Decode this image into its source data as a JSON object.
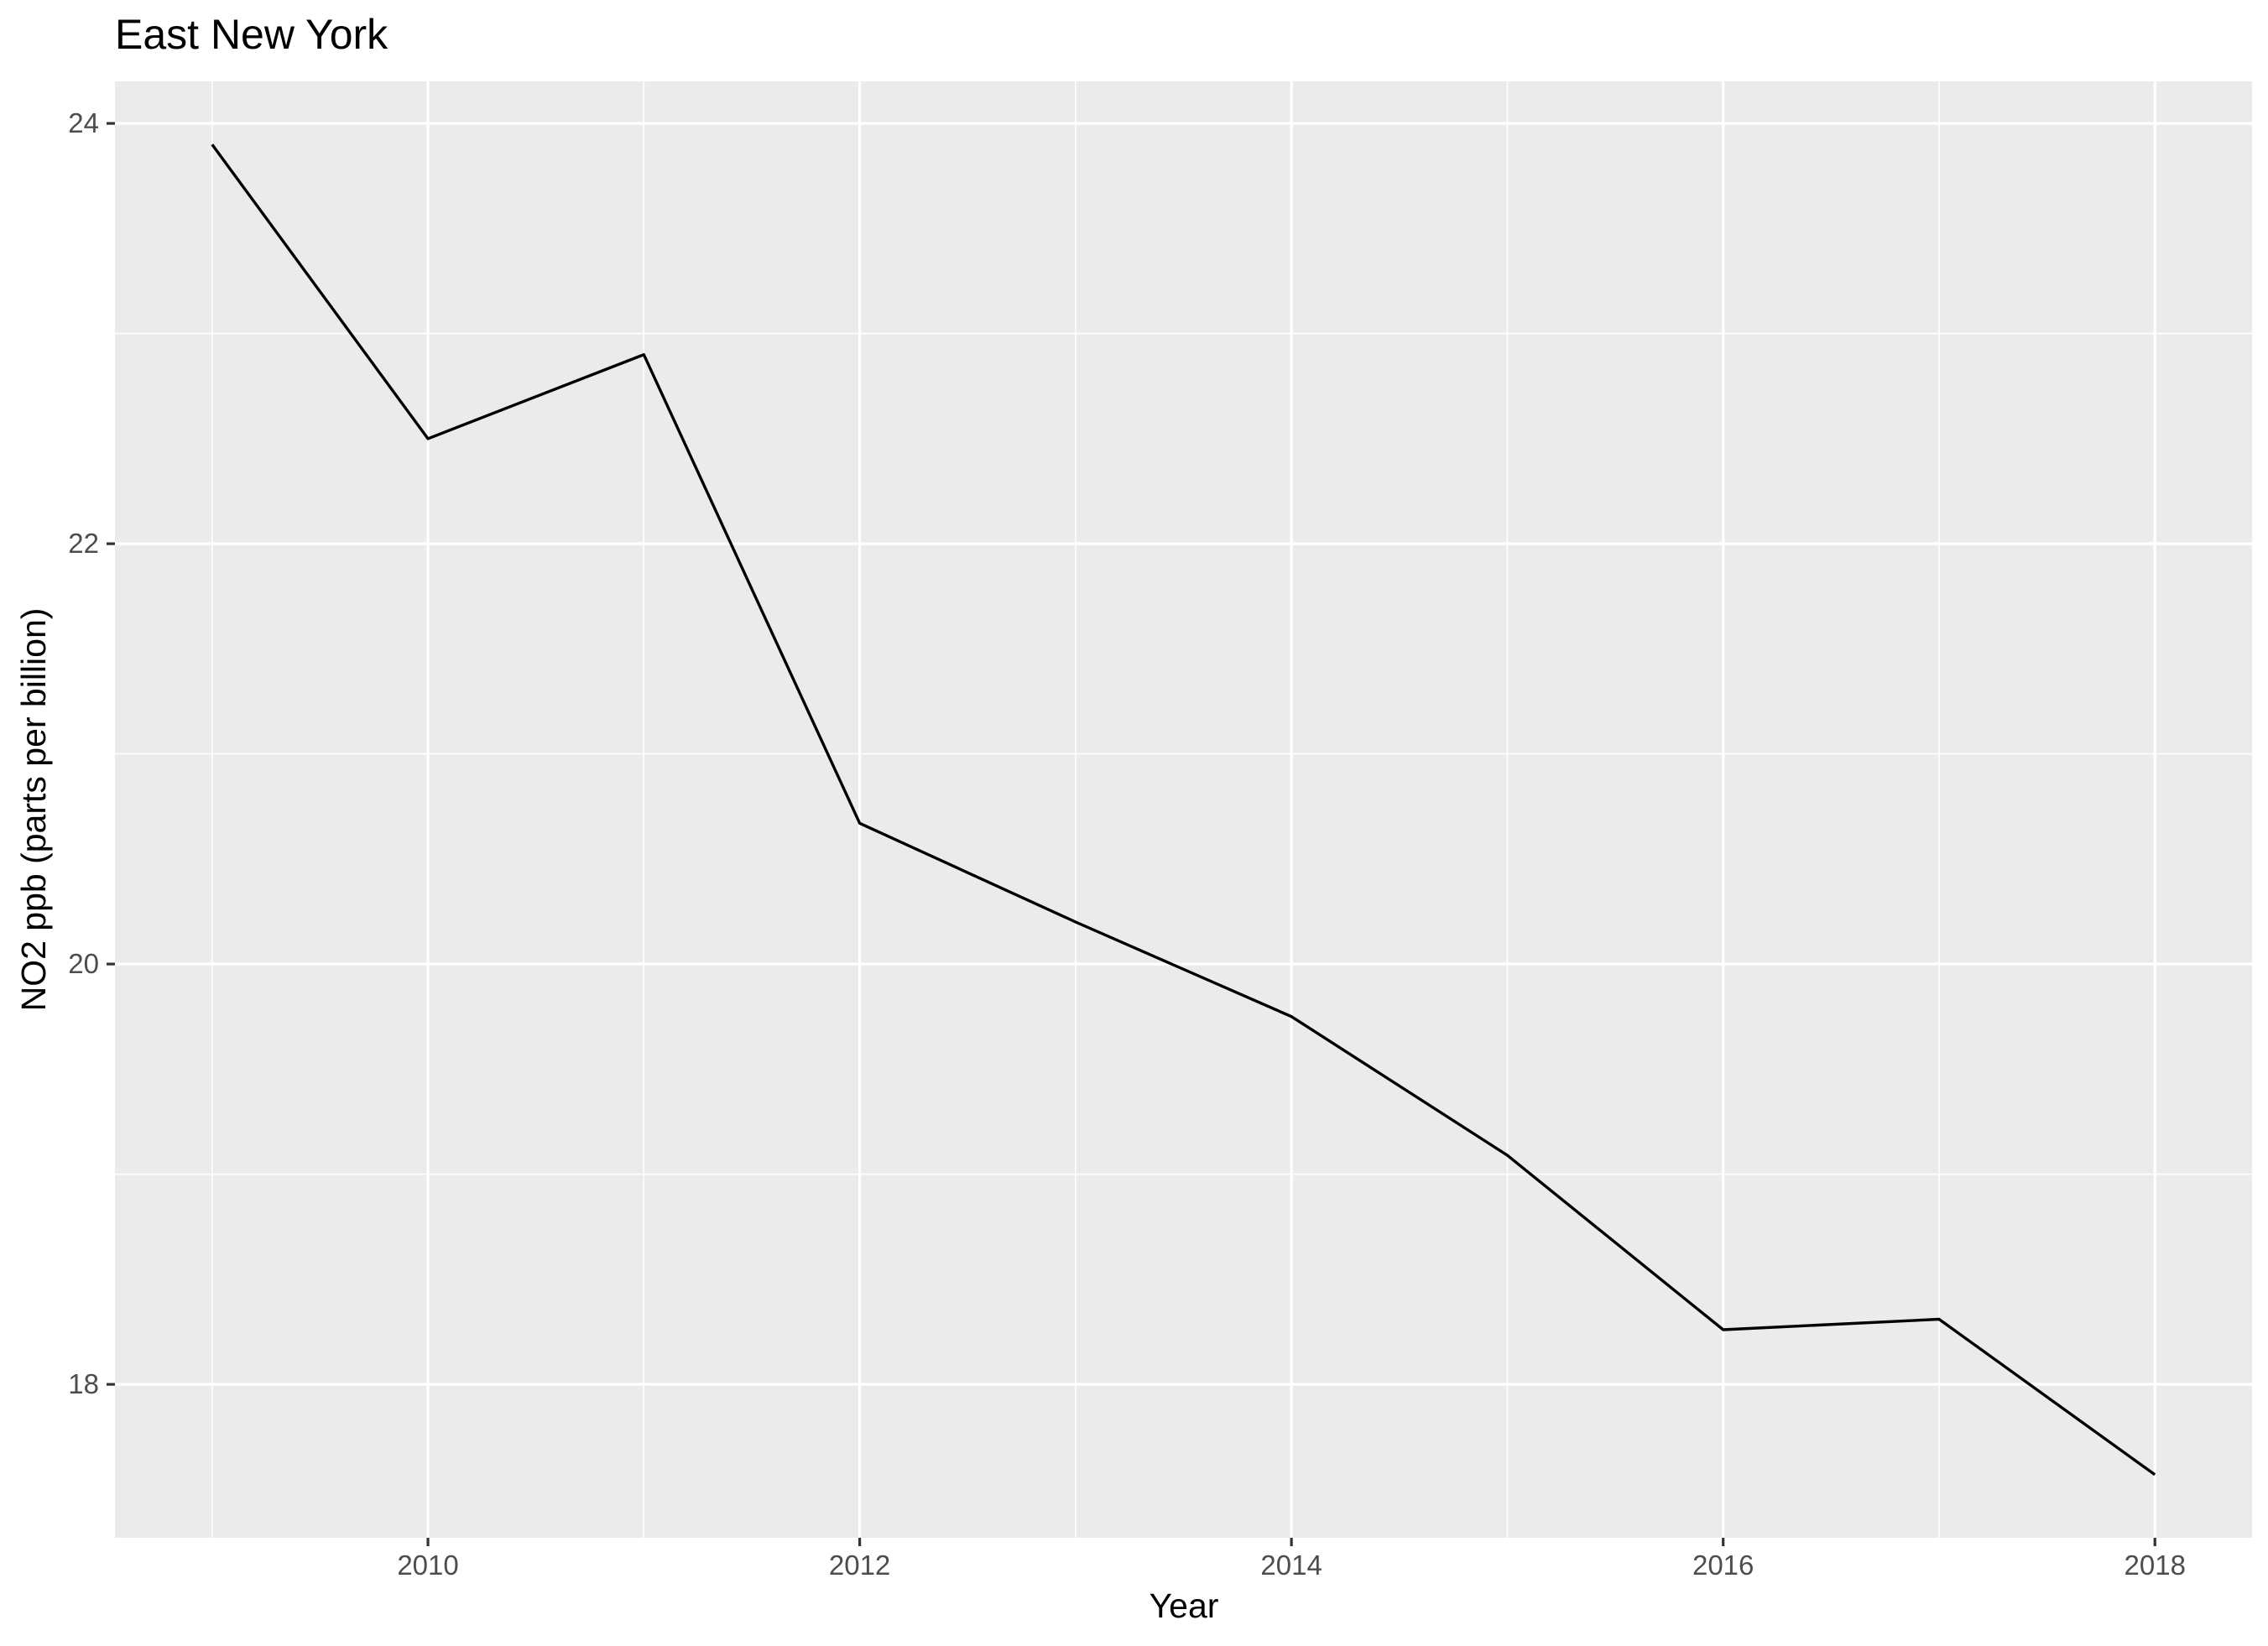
{
  "chart_data": {
    "type": "line",
    "title": "East New York",
    "xlabel": "Year",
    "ylabel": "NO2 ppb (parts per billion)",
    "x": [
      2009,
      2010,
      2011,
      2012,
      2013,
      2014,
      2015,
      2016,
      2017,
      2018
    ],
    "series": [
      {
        "values": [
          23.9,
          22.5,
          22.9,
          20.67,
          20.2,
          19.75,
          19.09,
          18.26,
          18.31,
          17.57
        ]
      }
    ],
    "xlim": [
      2008.55,
      2018.45
    ],
    "ylim": [
      17.27,
      24.2
    ],
    "x_major_ticks": [
      2010,
      2012,
      2014,
      2016,
      2018
    ],
    "x_minor_ticks": [
      2009,
      2011,
      2013,
      2015,
      2017
    ],
    "y_major_ticks": [
      18,
      20,
      22,
      24
    ],
    "y_minor_ticks": [
      19,
      21,
      23
    ],
    "x_tick_labels": [
      "2010",
      "2012",
      "2014",
      "2016",
      "2018"
    ],
    "y_tick_labels": [
      "18",
      "20",
      "22",
      "24"
    ],
    "grid": true,
    "legend": "none",
    "colors": {
      "panel": "#ebebeb",
      "grid": "#ffffff",
      "line": "#000000",
      "tick_text": "#4d4d4d",
      "tick_mark": "#333333"
    }
  }
}
